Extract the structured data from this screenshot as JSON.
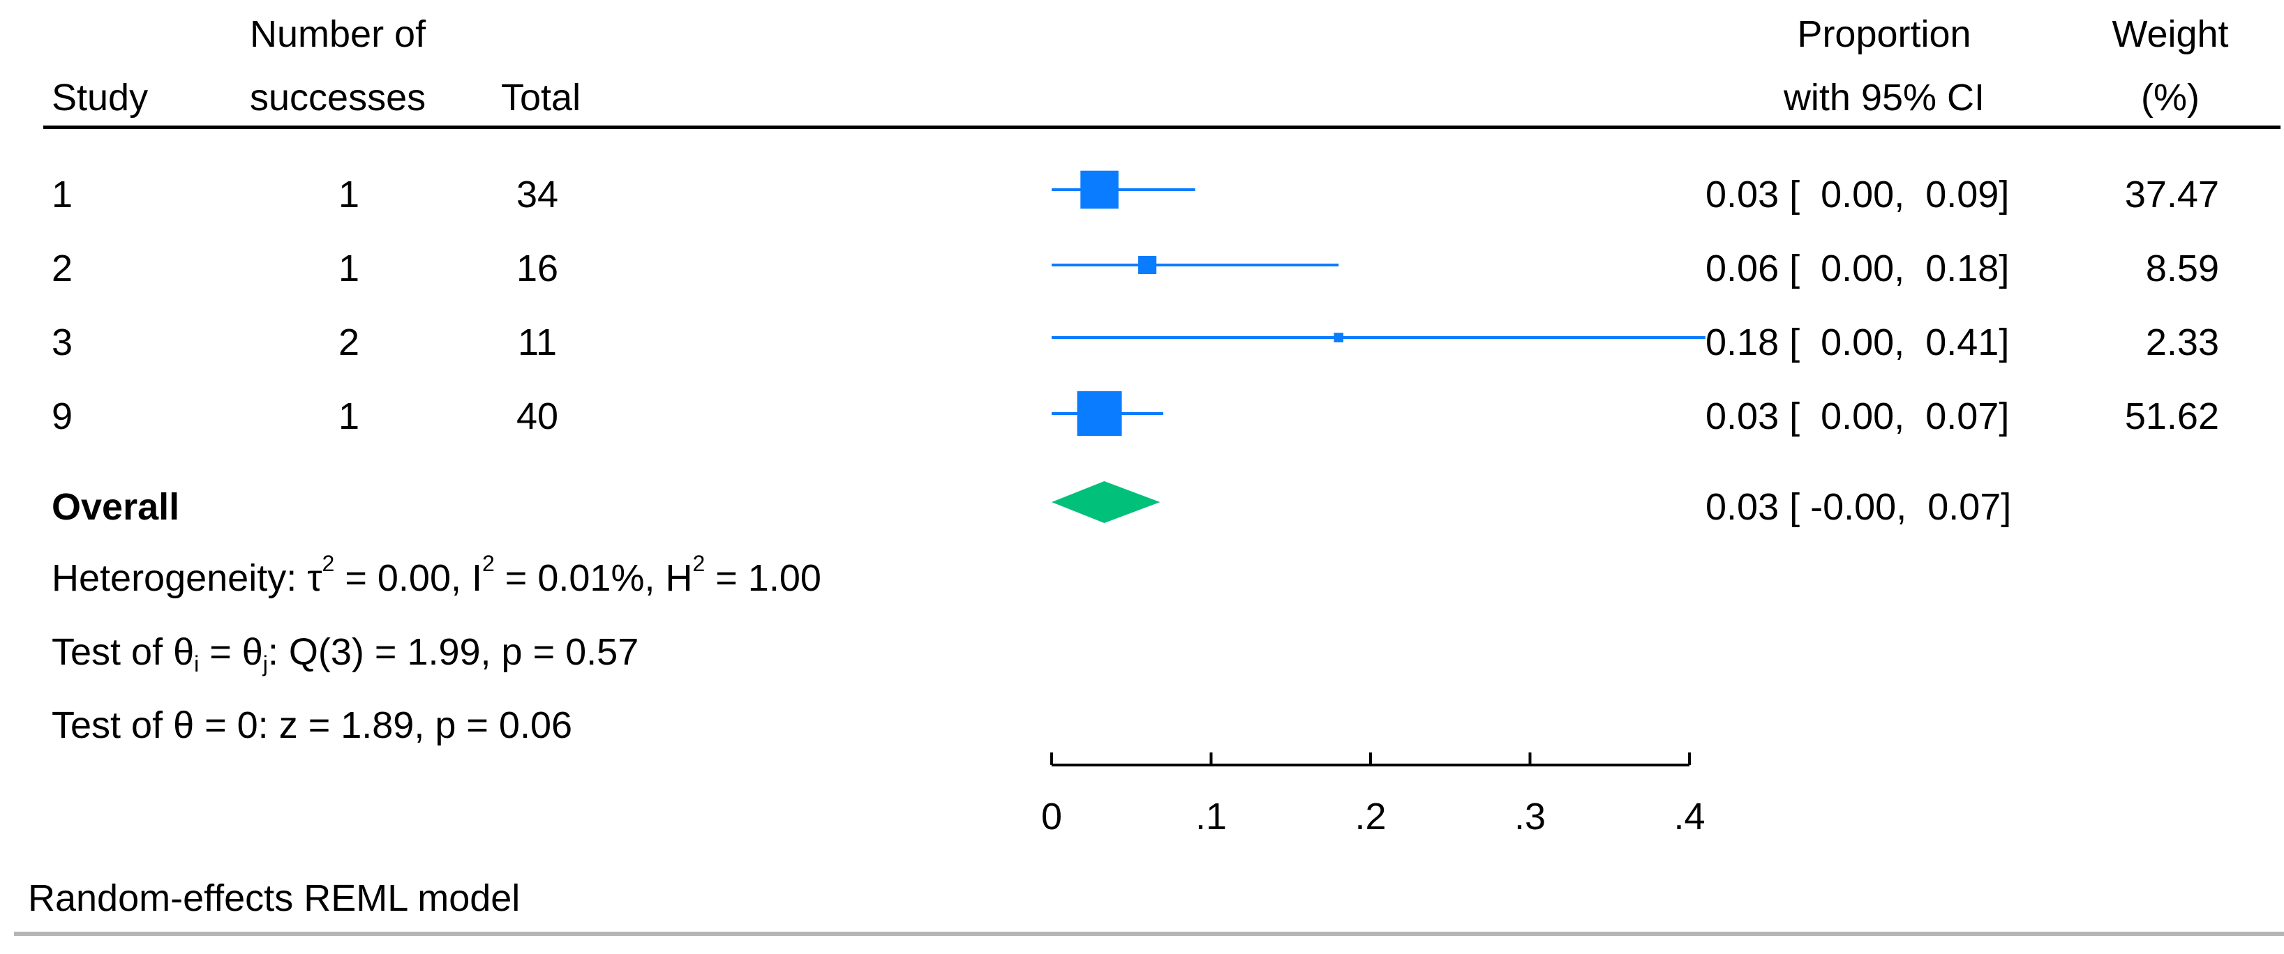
{
  "header": {
    "study": "Study",
    "successes_line1": "Number of",
    "successes_line2": "successes",
    "total": "Total",
    "proportion_line1": "Proportion",
    "proportion_line2": "with 95% CI",
    "weight_line1": "Weight",
    "weight_line2": "(%)"
  },
  "rows": [
    {
      "study": "1",
      "successes": "1",
      "total": "34",
      "ci_text": "0.03 [  0.00,  0.09]",
      "weight_text": "37.47"
    },
    {
      "study": "2",
      "successes": "1",
      "total": "16",
      "ci_text": "0.06 [  0.00,  0.18]",
      "weight_text": "8.59"
    },
    {
      "study": "3",
      "successes": "2",
      "total": "11",
      "ci_text": "0.18 [  0.00,  0.41]",
      "weight_text": "2.33"
    },
    {
      "study": "9",
      "successes": "1",
      "total": "40",
      "ci_text": "0.03 [  0.00,  0.07]",
      "weight_text": "51.62"
    }
  ],
  "overall": {
    "label": "Overall",
    "ci_text": "0.03 [ -0.00,  0.07]"
  },
  "stats": {
    "het_prefix": "Heterogeneity: τ",
    "het_sup1": "2",
    "het_mid1": " = 0.00, I",
    "het_sup2": "2",
    "het_mid2": " = 0.01%, H",
    "het_sup3": "2",
    "het_end": " = 1.00",
    "q_prefix": "Test of θ",
    "q_sub1": "i",
    "q_mid": " = θ",
    "q_sub2": "j",
    "q_end": ": Q(3) = 1.99, p = 0.57",
    "z_test": "Test of θ = 0: z = 1.89, p = 0.06"
  },
  "footer": {
    "model": "Random-effects REML model"
  },
  "chart_data": {
    "type": "forest",
    "xlim": [
      0,
      0.41
    ],
    "ticks": [
      0,
      0.1,
      0.2,
      0.3,
      0.4
    ],
    "tick_labels": [
      "0",
      ".1",
      ".2",
      ".3",
      ".4"
    ],
    "series": [
      {
        "study": "1",
        "estimate": 0.03,
        "ci": [
          0.0,
          0.09
        ],
        "weight": 37.47
      },
      {
        "study": "2",
        "estimate": 0.06,
        "ci": [
          0.0,
          0.18
        ],
        "weight": 8.59
      },
      {
        "study": "3",
        "estimate": 0.18,
        "ci": [
          0.0,
          0.41
        ],
        "weight": 2.33
      },
      {
        "study": "9",
        "estimate": 0.03,
        "ci": [
          0.0,
          0.07
        ],
        "weight": 51.62
      }
    ],
    "overall": {
      "estimate": 0.033,
      "ci": [
        -0.0,
        0.068
      ]
    },
    "colors": {
      "study": "#0a7cff",
      "overall": "#00c07a",
      "axis": "#000000",
      "rule": "#000000",
      "footer_rule": "#b5b5b5"
    }
  }
}
